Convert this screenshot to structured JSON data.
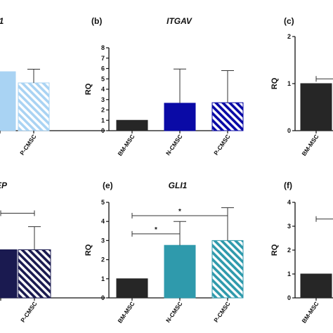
{
  "chart_data": [
    {
      "id": "a",
      "panel_label": "",
      "title": "1",
      "type": "bar",
      "ylabel": "",
      "yticks": [],
      "ylim": [
        0,
        1.2
      ],
      "categories": [
        "",
        "P-CMSC"
      ],
      "values": [
        0.95,
        0.77
      ],
      "errors": [
        0,
        0.22
      ],
      "colors": [
        "#a9d3f3",
        "#a9d3f3"
      ],
      "hatched": [
        false,
        true
      ],
      "significance": []
    },
    {
      "id": "b",
      "panel_label": "(b)",
      "title": "ITGAV",
      "type": "bar",
      "ylabel": "RQ",
      "yticks": [
        0,
        1,
        2,
        3,
        4,
        5,
        6,
        7,
        8
      ],
      "ylim": [
        0,
        8
      ],
      "categories": [
        "BM-MSC",
        "N-CMSC",
        "P-CMSC"
      ],
      "values": [
        1.0,
        2.65,
        2.7
      ],
      "errors": [
        0,
        3.3,
        3.1
      ],
      "colors": [
        "#262626",
        "#0a0aa6",
        "#0a0aa6"
      ],
      "hatched": [
        false,
        false,
        true
      ],
      "significance": []
    },
    {
      "id": "c",
      "panel_label": "(c)",
      "title": "",
      "type": "bar",
      "ylabel": "RQ",
      "yticks": [
        0,
        1,
        2
      ],
      "ylim": [
        0,
        2
      ],
      "categories": [
        "BM-MSC",
        ""
      ],
      "values": [
        1.0,
        0
      ],
      "errors": [
        0,
        0
      ],
      "colors": [
        "#262626",
        "#262626"
      ],
      "hatched": [
        false,
        false
      ],
      "significance": [
        {
          "from": 0,
          "to": 1,
          "y": 1.1,
          "label": ""
        }
      ]
    },
    {
      "id": "d",
      "panel_label": "",
      "title": "EP",
      "type": "bar",
      "ylabel": "",
      "yticks": [],
      "ylim": [
        0,
        5
      ],
      "categories": [
        "",
        "P-CMSC"
      ],
      "values": [
        2.5,
        2.5
      ],
      "errors": [
        0,
        1.2
      ],
      "colors": [
        "#1a1a50",
        "#1a1a50"
      ],
      "hatched": [
        false,
        true
      ],
      "significance": [
        {
          "from": 0,
          "to": 1,
          "y": 4.4,
          "label": ""
        }
      ]
    },
    {
      "id": "e",
      "panel_label": "(e)",
      "title": "GLI1",
      "type": "bar",
      "ylabel": "RQ",
      "yticks": [
        0,
        1,
        2,
        3,
        4,
        5
      ],
      "ylim": [
        0,
        5
      ],
      "categories": [
        "BM-MSC",
        "N-CMSC",
        "P-CMSC"
      ],
      "values": [
        1.0,
        2.75,
        3.0
      ],
      "errors": [
        0,
        1.25,
        1.72
      ],
      "colors": [
        "#262626",
        "#2f9aac",
        "#2f9aac"
      ],
      "hatched": [
        false,
        false,
        true
      ],
      "significance": [
        {
          "from": 0,
          "to": 1,
          "y": 3.35,
          "label": "*"
        },
        {
          "from": 0,
          "to": 2,
          "y": 4.3,
          "label": "*"
        }
      ]
    },
    {
      "id": "f",
      "panel_label": "(f)",
      "title": "",
      "type": "bar",
      "ylabel": "RQ",
      "yticks": [
        0,
        1,
        2,
        3,
        4
      ],
      "ylim": [
        0,
        4
      ],
      "categories": [
        "BM-MSC",
        ""
      ],
      "values": [
        1.0,
        0
      ],
      "errors": [
        0,
        0
      ],
      "colors": [
        "#262626",
        "#262626"
      ],
      "hatched": [
        false,
        false
      ],
      "significance": [
        {
          "from": 0,
          "to": 1,
          "y": 3.3,
          "label": ""
        }
      ]
    }
  ]
}
